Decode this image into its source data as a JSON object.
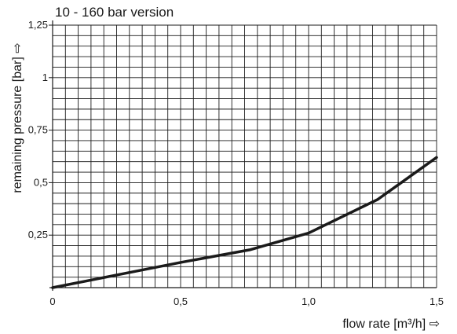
{
  "chart_data": {
    "type": "line",
    "title": "10 - 160 bar version",
    "xlabel": "flow rate [m³/h] ⇨",
    "ylabel": "remaining pressure [bar] ⇨",
    "xlim": [
      0,
      1.5
    ],
    "ylim": [
      0,
      1.25
    ],
    "grid": true,
    "x_ticks": [
      {
        "value": 0,
        "label": "0"
      },
      {
        "value": 0.5,
        "label": "0,5"
      },
      {
        "value": 1.0,
        "label": "1,0"
      },
      {
        "value": 1.5,
        "label": "1,5"
      }
    ],
    "y_ticks": [
      {
        "value": 0.25,
        "label": "0,25"
      },
      {
        "value": 0.5,
        "label": "0,5"
      },
      {
        "value": 0.75,
        "label": "0,75"
      },
      {
        "value": 1.0,
        "label": "1"
      },
      {
        "value": 1.25,
        "label": "1,25"
      }
    ],
    "series": [
      {
        "color": "#1a1a1a",
        "x": [
          0,
          0.25,
          0.5,
          0.77,
          1.0,
          1.27,
          1.5
        ],
        "y": [
          0,
          0.06,
          0.12,
          0.18,
          0.26,
          0.42,
          0.62
        ]
      }
    ]
  }
}
